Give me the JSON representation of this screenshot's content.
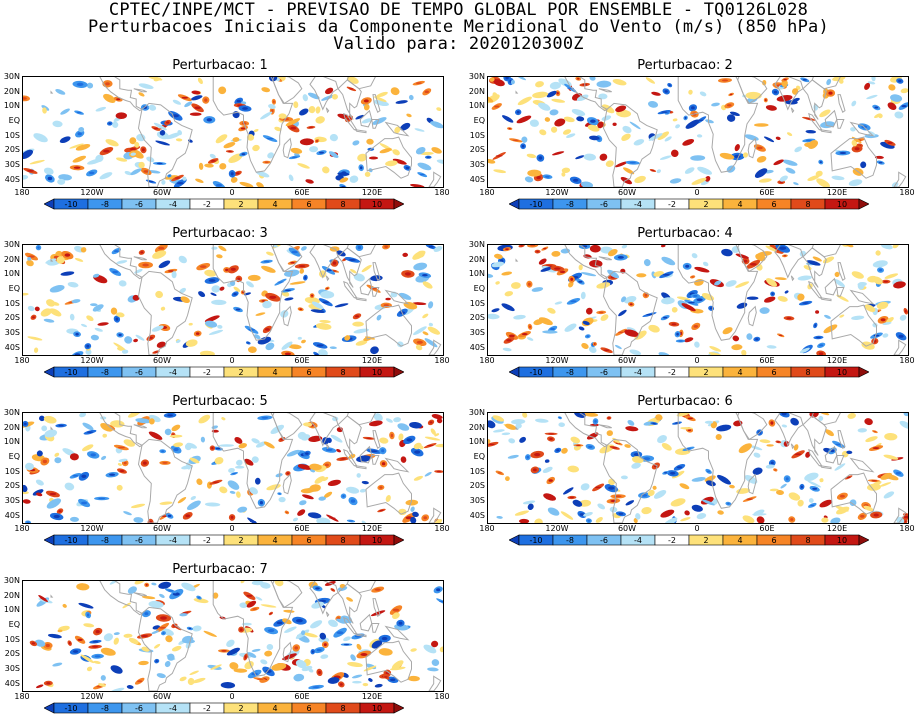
{
  "header": {
    "line1": "CPTEC/INPE/MCT - PREVISAO DE TEMPO GLOBAL POR ENSEMBLE - TQ0126L028",
    "line2": "Perturbacoes Iniciais da Componente Meridional do Vento (m/s) (850 hPa)",
    "line3": "Valido para: 2020120300Z"
  },
  "panels": [
    {
      "title": "Perturbacao: 1"
    },
    {
      "title": "Perturbacao: 2"
    },
    {
      "title": "Perturbacao: 3"
    },
    {
      "title": "Perturbacao: 4"
    },
    {
      "title": "Perturbacao: 5"
    },
    {
      "title": "Perturbacao: 6"
    },
    {
      "title": "Perturbacao: 7"
    }
  ],
  "lat_labels": [
    "30N",
    "20N",
    "10N",
    "EQ",
    "10S",
    "20S",
    "30S",
    "40S"
  ],
  "lon_labels": [
    "180",
    "120W",
    "60W",
    "0",
    "60E",
    "120E",
    "180"
  ],
  "colorbar": {
    "labels": [
      "-10",
      "-8",
      "-6",
      "-4",
      "-2",
      "2",
      "4",
      "6",
      "8",
      "10"
    ],
    "colors": [
      "#0d3fb8",
      "#1e6fe0",
      "#3d96ee",
      "#7ec1f2",
      "#b5e2f6",
      "#ffffff",
      "#fde17a",
      "#fbb33c",
      "#f68426",
      "#e04a1a",
      "#c41712",
      "#8f0d0b"
    ]
  },
  "colors": {
    "continent": "#a9a9a9",
    "frame": "#000000"
  }
}
